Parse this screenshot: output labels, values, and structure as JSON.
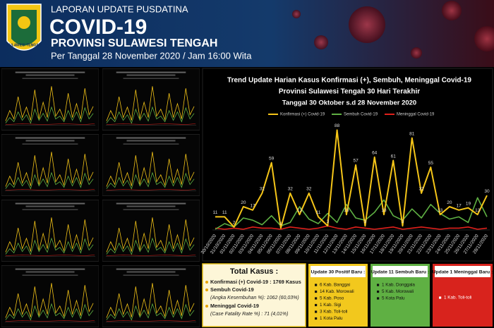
{
  "header": {
    "logo_text": "SULAWESI TENGAH",
    "kicker": "LAPORAN UPDATE PUSDATINA",
    "title": "COVID-19",
    "subtitle": "PROVINSI SULAWESI TENGAH",
    "date": "Per Tanggal 28 November 2020 / Jam 16:00 Wita"
  },
  "chart_data": {
    "type": "line",
    "title": "Trend Update Harian Kasus Konfirmasi (+), Sembuh, Meninggal Covid-19",
    "subtitle": "Provinsi Sulawesi Tengah 30 Hari Terakhir",
    "subtitle2": "Tanggal 30 Oktober s.d 28 November 2020",
    "categories": [
      "30/10/2020",
      "31/10/2020",
      "01/11/2020",
      "02/11/2020",
      "03/11/2020",
      "04/11/2020",
      "05/11/2020",
      "06/11/2020",
      "07/11/2020",
      "08/11/2020",
      "09/11/2020",
      "10/11/2020",
      "11/11/2020",
      "12/11/2020",
      "13/11/2020",
      "14/11/2020",
      "15/11/2020",
      "16/11/2020",
      "17/11/2020",
      "18/11/2020",
      "19/11/2020",
      "20/11/2020",
      "21/11/2020",
      "22/11/2020",
      "23/11/2020",
      "24/11/2020",
      "25/11/2020",
      "26/11/2020",
      "27/11/2020",
      "28/11/2020"
    ],
    "ylim": [
      0,
      92
    ],
    "series": [
      {
        "name": "Konfirmasi (+) Covid-19",
        "color": "#f5c518",
        "values": [
          11,
          11,
          2,
          20,
          17,
          32,
          59,
          1,
          32,
          13,
          32,
          11,
          3,
          88,
          13,
          57,
          3,
          64,
          13,
          61,
          3,
          81,
          32,
          55,
          13,
          20,
          17,
          19,
          13,
          30
        ]
      },
      {
        "name": "Sembuh Covid-19",
        "color": "#5fb043",
        "values": [
          0,
          5,
          2,
          10,
          8,
          4,
          12,
          3,
          6,
          20,
          9,
          5,
          14,
          6,
          22,
          10,
          8,
          15,
          26,
          12,
          8,
          18,
          10,
          22,
          14,
          9,
          11,
          6,
          28,
          11
        ]
      },
      {
        "name": "Meninggal Covid-19",
        "color": "#e0201b",
        "values": [
          1,
          0,
          1,
          0,
          2,
          1,
          1,
          0,
          2,
          1,
          0,
          1,
          3,
          1,
          0,
          2,
          1,
          0,
          1,
          2,
          0,
          1,
          2,
          1,
          0,
          1,
          1,
          2,
          0,
          1
        ]
      }
    ]
  },
  "summary": {
    "title": "Total Kasus :",
    "items": [
      {
        "label": "Konfirmasi (+) Covid-19 : 1769 Kasus"
      },
      {
        "label": "Sembuh Covid-19",
        "detail": "(Angka Kesembuhan %): 1062 (60,03%)"
      },
      {
        "label": "Meninggal Covid-19",
        "detail": "(Case Fatality Rate %) : 71 (4,01%)"
      }
    ]
  },
  "boxes": [
    {
      "title": "Update 30 Positif Baru :",
      "items": [
        "6 Kab. Banggai",
        "14 Kab. Morowali",
        "5 Kab. Poso",
        "1 Kab. Sigi",
        "3 Kab. Toli-toli",
        "1 Kota Palu"
      ]
    },
    {
      "title": "Update 11 Sembuh Baru :",
      "items": [
        "1 Kab. Donggala",
        "5 Kab. Morowali",
        "5 Kota Palu"
      ]
    },
    {
      "title": "Update 1 Meninggal Baru :",
      "items": [
        "1 Kab. Toli-toli"
      ]
    }
  ]
}
